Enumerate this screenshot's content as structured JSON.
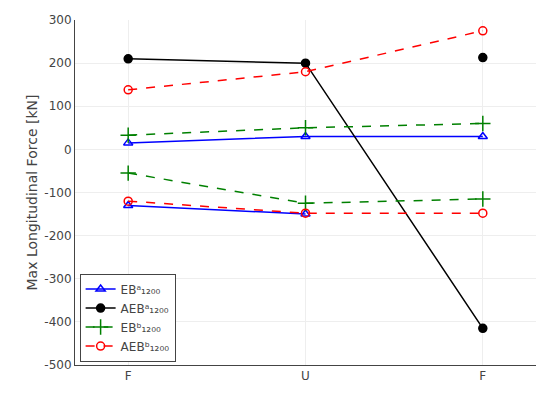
{
  "chart_data": {
    "type": "line",
    "categories": [
      "F",
      "U",
      "F"
    ],
    "ylabel": "Max Longitudinal Force [kN]",
    "ylim": [
      -500,
      300
    ],
    "yticks": [
      -500,
      -400,
      -300,
      -200,
      -100,
      0,
      100,
      200,
      300
    ],
    "grid": true,
    "legend": "lower left",
    "series": [
      {
        "name": "EBᵃ₁₂₀₀",
        "color": "blue",
        "marker": "triangle-open",
        "line_style": "solid",
        "values": [
          15,
          30,
          30
        ]
      },
      {
        "name": "EBᵃ₁₂₀₀",
        "color": "blue",
        "marker": "triangle-open",
        "line_style": "solid",
        "values": [
          -130,
          -150,
          null
        ]
      },
      {
        "name": "AEBᵃ₁₂₀₀",
        "color": "black",
        "marker": "circle",
        "line_style": "solid",
        "values": [
          210,
          200,
          -415
        ]
      },
      {
        "name": "AEBᵃ₁₂₀₀",
        "color": "black",
        "marker": "circle",
        "type": "scatter",
        "values": [
          null,
          null,
          213
        ]
      },
      {
        "name": "EBᵇ₁₂₀₀",
        "color": "green",
        "marker": "plus",
        "line_style": "dashed",
        "values": [
          33,
          50,
          60
        ]
      },
      {
        "name": "EBᵇ₁₂₀₀",
        "color": "green",
        "marker": "plus",
        "line_style": "dashed",
        "values": [
          -55,
          -125,
          -115
        ]
      },
      {
        "name": "AEBᵇ₁₂₀₀",
        "color": "red",
        "marker": "circle-open",
        "line_style": "dashed",
        "values": [
          138,
          180,
          275
        ]
      },
      {
        "name": "AEBᵇ₁₂₀₀",
        "color": "red",
        "marker": "circle-open",
        "line_style": "dashed",
        "values": [
          -120,
          -148,
          -148
        ]
      }
    ]
  }
}
